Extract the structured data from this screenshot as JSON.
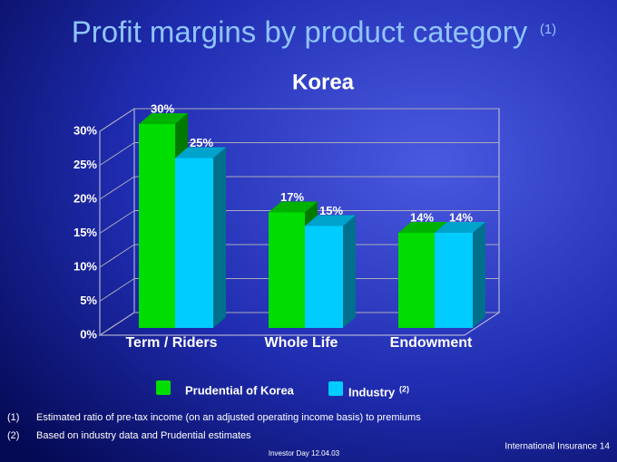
{
  "title": "Profit margins by product category",
  "title_note": "(1)",
  "chart_data": {
    "type": "bar3d",
    "title": "Korea",
    "categories": [
      "Term / Riders",
      "Whole Life",
      "Endowment"
    ],
    "series": [
      {
        "name": "Prudential of Korea",
        "color": "#00dd00",
        "values": [
          30,
          17,
          14
        ],
        "value_labels": [
          "30%",
          "17%",
          "14%"
        ]
      },
      {
        "name": "Industry",
        "name_note": "(2)",
        "color": "#00ccff",
        "values": [
          25,
          15,
          14
        ],
        "value_labels": [
          "25%",
          "15%",
          "14%"
        ]
      }
    ],
    "ylim": [
      0,
      30
    ],
    "yticks": [
      {
        "value": 0,
        "label": "0%"
      },
      {
        "value": 5,
        "label": "5%"
      },
      {
        "value": 10,
        "label": "10%"
      },
      {
        "value": 15,
        "label": "15%"
      },
      {
        "value": 20,
        "label": "20%"
      },
      {
        "value": 25,
        "label": "25%"
      },
      {
        "value": 30,
        "label": "30%"
      }
    ],
    "grid": true
  },
  "footnotes": [
    {
      "marker": "(1)",
      "text": "Estimated ratio of pre-tax income (on an adjusted operating income basis) to premiums"
    },
    {
      "marker": "(2)",
      "text": "Based on industry data and Prudential estimates"
    }
  ],
  "footer": {
    "event": "Investor Day 12.04.03",
    "section": "International Insurance 14"
  }
}
